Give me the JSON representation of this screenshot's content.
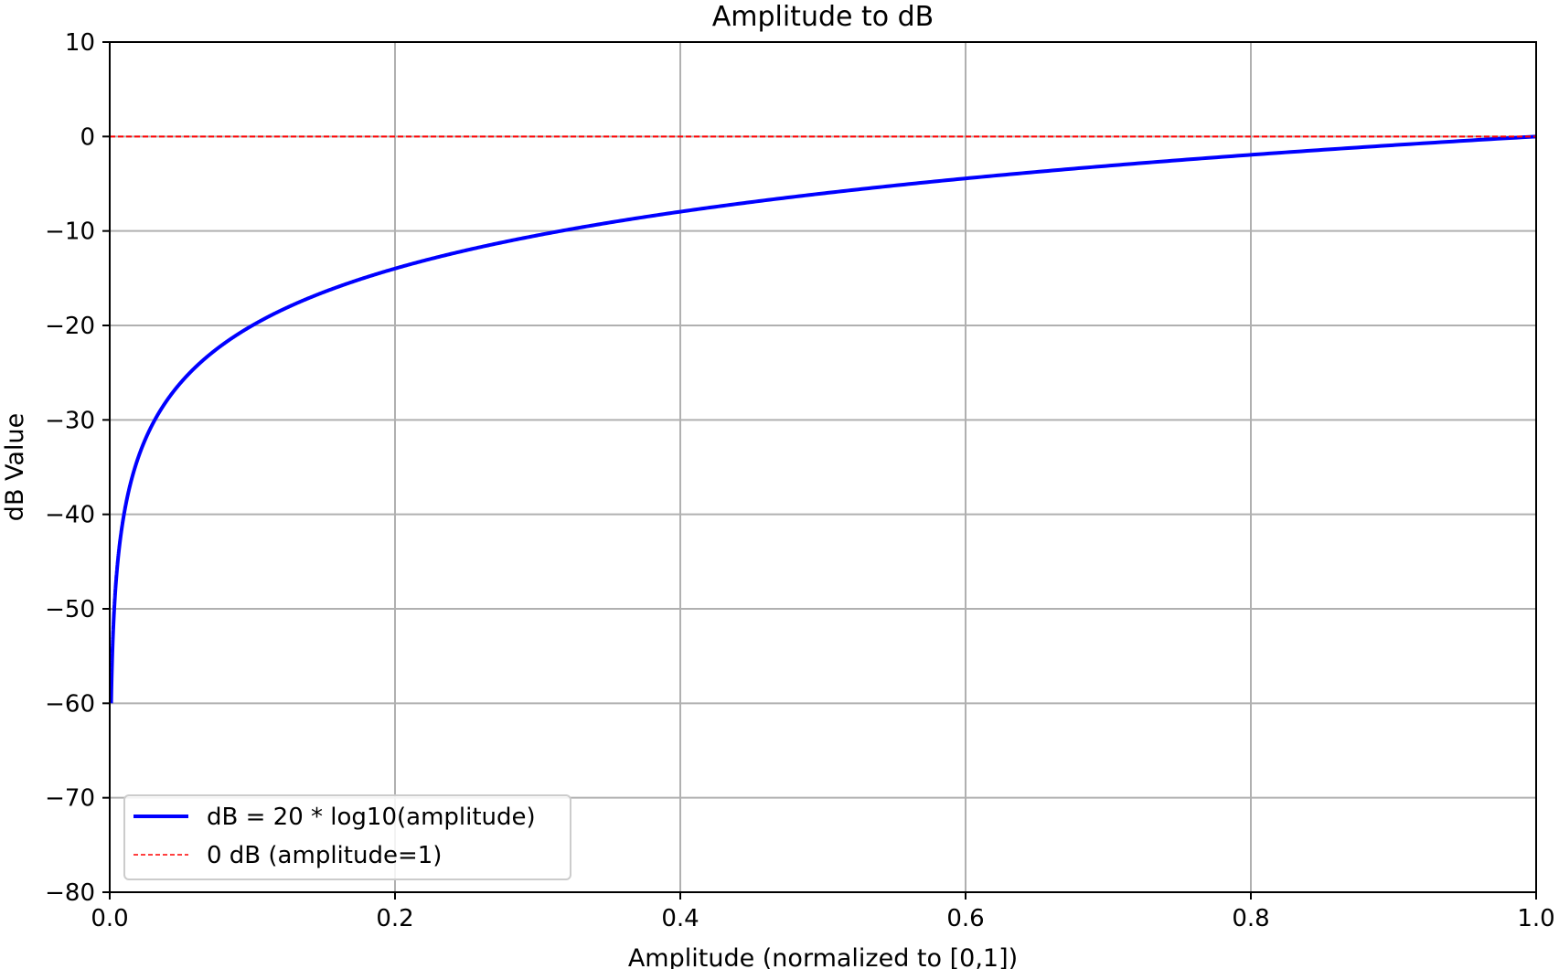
{
  "chart_data": {
    "type": "line",
    "title": "Amplitude to dB",
    "xlabel": "Amplitude (normalized to [0,1])",
    "ylabel": "dB Value",
    "xlim": [
      0.0,
      1.0
    ],
    "ylim": [
      -80,
      10
    ],
    "x_ticks": [
      0.0,
      0.2,
      0.4,
      0.6,
      0.8,
      1.0
    ],
    "x_tick_labels": [
      "0.0",
      "0.2",
      "0.4",
      "0.6",
      "0.8",
      "1.0"
    ],
    "y_ticks": [
      10,
      0,
      -10,
      -20,
      -30,
      -40,
      -50,
      -60,
      -70,
      -80
    ],
    "y_tick_labels": [
      "10",
      "0",
      "−10",
      "−20",
      "−30",
      "−40",
      "−50",
      "−60",
      "−70",
      "−80"
    ],
    "grid": true,
    "legend_position": "lower-left",
    "series": [
      {
        "name": "dB = 20 * log10(amplitude)",
        "color": "#0000ff",
        "style": "solid",
        "function": "20*log10(x)",
        "x_range": [
          0.001,
          1.0
        ],
        "x": [
          0.001,
          0.002,
          0.005,
          0.01,
          0.02,
          0.03,
          0.05,
          0.1,
          0.2,
          0.3,
          0.4,
          0.5,
          0.6,
          0.7,
          0.8,
          0.9,
          1.0
        ],
        "y": [
          -60,
          -53.98,
          -46.02,
          -40,
          -33.98,
          -30.46,
          -26.02,
          -20,
          -13.98,
          -10.46,
          -7.96,
          -6.02,
          -4.44,
          -3.1,
          -1.94,
          -0.92,
          0
        ]
      },
      {
        "name": "0 dB (amplitude=1)",
        "color": "#ff0000",
        "style": "dashed",
        "x": [
          0.0,
          1.0
        ],
        "y": [
          0,
          0
        ]
      }
    ]
  }
}
